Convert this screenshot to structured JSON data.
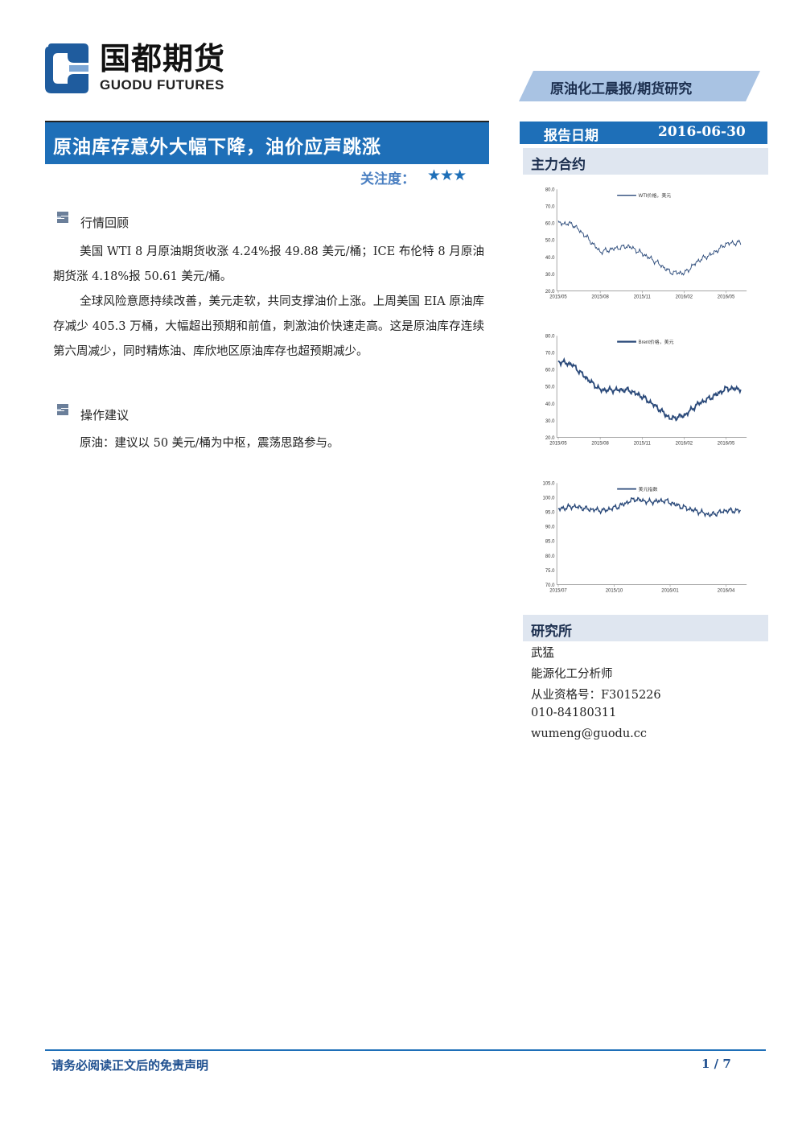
{
  "brand": {
    "name_cn": "国都期货",
    "name_en": "GUODU FUTURES",
    "colors": {
      "primary": "#1e6fb8",
      "light": "#dfe6f0",
      "dark": "#1c2f4f"
    }
  },
  "header": {
    "category": "原油化工晨报/期货研究"
  },
  "report": {
    "title": "原油库存意外大幅下降，油价应声跳涨",
    "attention_label": "关注度：",
    "attention_stars": "★★★",
    "attention_level": 3
  },
  "sections": [
    {
      "icon": "section-bullet-icon",
      "title": "行情回顾",
      "paragraphs": [
        "美国 WTI 8 月原油期货收涨 4.24%报 49.88 美元/桶；ICE 布伦特 8 月原油期货涨 4.18%报 50.61 美元/桶。",
        "全球风险意愿持续改善，美元走软，共同支撑油价上涨。上周美国 EIA 原油库存减少 405.3 万桶，大幅超出预期和前值，刺激油价快速走高。这是原油库存连续第六周减少，同时精炼油、库欣地区原油库存也超预期减少。"
      ]
    },
    {
      "icon": "section-bullet-icon",
      "title": "操作建议",
      "paragraphs": [
        "原油：建议以 50 美元/桶为中枢，震荡思路参与。"
      ]
    }
  ],
  "sidebar": {
    "date_label": "报告日期",
    "date_value": "2016-06-30",
    "contracts_title": "主力合约",
    "research_title": "研究所",
    "analyst": {
      "name": "武猛",
      "role": "能源化工分析师",
      "license": "从业资格号：F3015226",
      "phone": "010-84180311",
      "email": "wumeng@guodu.cc"
    }
  },
  "chart_data": [
    {
      "type": "line",
      "series": [
        {
          "name": "WTI价格，美元"
        }
      ],
      "ylim": [
        20,
        80
      ],
      "yticks": [
        "80.0",
        "70.0",
        "60.0",
        "50.0",
        "40.0",
        "30.0",
        "20.0"
      ],
      "xticks": [
        "2015/05",
        "2015/08",
        "2015/11",
        "2016/02",
        "2016/05"
      ],
      "x": [
        "2015/05",
        "2015/06",
        "2015/07",
        "2015/08",
        "2015/09",
        "2015/10",
        "2015/11",
        "2015/12",
        "2016/01",
        "2016/02",
        "2016/03",
        "2016/04",
        "2016/05",
        "2016/06"
      ],
      "values": [
        60,
        59.5,
        52,
        43,
        45,
        46.5,
        42,
        37,
        31,
        30.5,
        38,
        42,
        48,
        48.5
      ],
      "color": "#2b4a7a",
      "stroke": 1
    },
    {
      "type": "line",
      "series": [
        {
          "name": "Brent价格，美元"
        }
      ],
      "ylim": [
        20,
        80
      ],
      "yticks": [
        "80.0",
        "70.0",
        "60.0",
        "50.0",
        "40.0",
        "30.0",
        "20.0"
      ],
      "xticks": [
        "2015/05",
        "2015/08",
        "2015/11",
        "2016/02",
        "2016/05"
      ],
      "x": [
        "2015/05",
        "2015/06",
        "2015/07",
        "2015/08",
        "2015/09",
        "2015/10",
        "2015/11",
        "2015/12",
        "2016/01",
        "2016/02",
        "2016/03",
        "2016/04",
        "2016/05",
        "2016/06"
      ],
      "values": [
        65,
        63,
        55,
        48,
        48,
        48,
        44,
        38,
        31,
        33,
        40,
        44,
        49,
        48.5
      ],
      "color": "#2b4a7a",
      "stroke": 2
    },
    {
      "type": "line",
      "series": [
        {
          "name": "美元指数"
        }
      ],
      "ylim": [
        70,
        105
      ],
      "yticks": [
        "105.0",
        "100.0",
        "95.0",
        "90.0",
        "85.0",
        "80.0",
        "75.0",
        "70.0"
      ],
      "xticks": [
        "2015/07",
        "2015/10",
        "2016/01",
        "2016/04"
      ],
      "x": [
        "2015/06",
        "2015/07",
        "2015/08",
        "2015/09",
        "2015/10",
        "2015/11",
        "2015/12",
        "2016/01",
        "2016/02",
        "2016/03",
        "2016/04",
        "2016/05",
        "2016/06"
      ],
      "values": [
        96,
        97,
        96,
        95.5,
        97,
        99.5,
        98.5,
        99,
        97,
        95.5,
        94,
        95.5,
        95.5
      ],
      "color": "#2b4a7a",
      "stroke": 1.5
    }
  ],
  "footer": {
    "disclaimer": "请务必阅读正文后的免责声明",
    "page": "1 / 7"
  }
}
